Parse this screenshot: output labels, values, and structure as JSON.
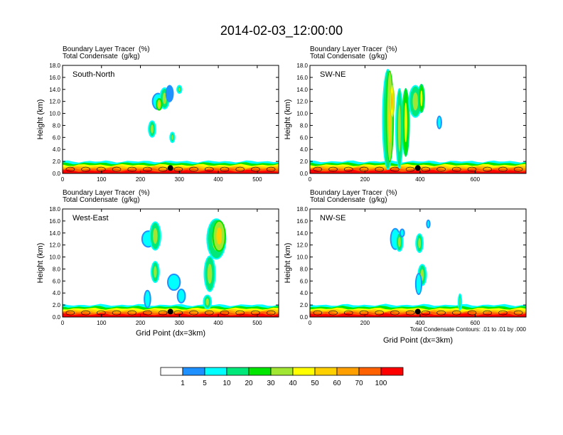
{
  "title": "2014-02-03_12:00:00",
  "chart_data": [
    {
      "type": "heatmap",
      "subtitle_left": "Boundary Layer Tracer",
      "subtitle_units": "(%)",
      "subtitle2_left": "Total Condensate",
      "subtitle2_units": "(g/kg)",
      "panel_label": "South-North",
      "xlabel": "",
      "ylabel": "Height (km)",
      "xlim": [
        0,
        555
      ],
      "ylim": [
        0,
        18
      ],
      "xticks": [
        "0",
        "100",
        "200",
        "300",
        "400",
        "500"
      ],
      "xtick_values": [
        0,
        100,
        200,
        300,
        400,
        500
      ],
      "yticks": [
        "0.0",
        "2.0",
        "4.0",
        "6.0",
        "8.0",
        "10.0",
        "12.0",
        "14.0",
        "16.0",
        "18.0"
      ],
      "marker_x": 277,
      "footnote": "",
      "blobs": [
        {
          "x": 245,
          "y": 12.0,
          "rx": 12,
          "ry": 1.2,
          "level": 2
        },
        {
          "x": 262,
          "y": 12.5,
          "rx": 10,
          "ry": 1.6,
          "level": 3
        },
        {
          "x": 275,
          "y": 13.3,
          "rx": 7,
          "ry": 1.2,
          "level": 1
        },
        {
          "x": 300,
          "y": 14.0,
          "rx": 4,
          "ry": 0.5,
          "level": 3
        },
        {
          "x": 230,
          "y": 7.4,
          "rx": 7,
          "ry": 1.2,
          "level": 3
        },
        {
          "x": 282,
          "y": 6.0,
          "rx": 4,
          "ry": 0.7,
          "level": 3
        },
        {
          "x": 248,
          "y": 11.5,
          "rx": 5,
          "ry": 0.8,
          "level": 5
        }
      ]
    },
    {
      "type": "heatmap",
      "subtitle_left": "Boundary Layer Tracer",
      "subtitle_units": "(%)",
      "subtitle2_left": "Total Condensate",
      "subtitle2_units": "(g/kg)",
      "panel_label": "SW-NE",
      "xlabel": "",
      "ylabel": "Height (km)",
      "xlim": [
        0,
        785
      ],
      "ylim": [
        0,
        18
      ],
      "xticks": [
        "0",
        "200",
        "400",
        "600"
      ],
      "xtick_values": [
        0,
        200,
        400,
        600
      ],
      "yticks": [
        "0.0",
        "2.0",
        "4.0",
        "6.0",
        "8.0",
        "10.0",
        "12.0",
        "14.0",
        "16.0",
        "18.0"
      ],
      "marker_x": 392,
      "footnote": "",
      "blobs": [
        {
          "x": 283,
          "y": 9.0,
          "rx": 16,
          "ry": 8.2,
          "level": 3
        },
        {
          "x": 290,
          "y": 9.5,
          "rx": 10,
          "ry": 7.4,
          "level": 5
        },
        {
          "x": 325,
          "y": 7.5,
          "rx": 10,
          "ry": 6.5,
          "level": 3
        },
        {
          "x": 348,
          "y": 8.5,
          "rx": 10,
          "ry": 5.5,
          "level": 4
        },
        {
          "x": 383,
          "y": 12.0,
          "rx": 20,
          "ry": 2.5,
          "level": 3
        },
        {
          "x": 405,
          "y": 12.5,
          "rx": 8,
          "ry": 2.2,
          "level": 4
        },
        {
          "x": 470,
          "y": 8.5,
          "rx": 5,
          "ry": 0.9,
          "level": 2
        },
        {
          "x": 298,
          "y": 12.0,
          "rx": 5,
          "ry": 2.5,
          "level": 6
        }
      ]
    },
    {
      "type": "heatmap",
      "subtitle_left": "Boundary Layer Tracer",
      "subtitle_units": "(%)",
      "subtitle2_left": "Total Condensate",
      "subtitle2_units": "(g/kg)",
      "panel_label": "West-East",
      "xlabel": "Grid Point (dx=3km)",
      "ylabel": "Height (km)",
      "xlim": [
        0,
        555
      ],
      "ylim": [
        0,
        18
      ],
      "xticks": [
        "0",
        "100",
        "200",
        "300",
        "400",
        "500"
      ],
      "xtick_values": [
        0,
        100,
        200,
        300,
        400,
        500
      ],
      "yticks": [
        "0.0",
        "2.0",
        "4.0",
        "6.0",
        "8.0",
        "10.0",
        "12.0",
        "14.0",
        "16.0",
        "18.0"
      ],
      "marker_x": 277,
      "footnote": "",
      "blobs": [
        {
          "x": 220,
          "y": 13.0,
          "rx": 14,
          "ry": 1.2,
          "level": 2
        },
        {
          "x": 238,
          "y": 13.5,
          "rx": 12,
          "ry": 2.2,
          "level": 3
        },
        {
          "x": 238,
          "y": 7.5,
          "rx": 8,
          "ry": 1.6,
          "level": 3
        },
        {
          "x": 218,
          "y": 3.0,
          "rx": 6,
          "ry": 1.3,
          "level": 2
        },
        {
          "x": 286,
          "y": 5.8,
          "rx": 14,
          "ry": 1.2,
          "level": 2
        },
        {
          "x": 305,
          "y": 3.5,
          "rx": 8,
          "ry": 1.0,
          "level": 2
        },
        {
          "x": 378,
          "y": 7.2,
          "rx": 12,
          "ry": 2.8,
          "level": 3
        },
        {
          "x": 395,
          "y": 13.0,
          "rx": 22,
          "ry": 3.2,
          "level": 3
        },
        {
          "x": 402,
          "y": 13.5,
          "rx": 14,
          "ry": 2.4,
          "level": 5
        },
        {
          "x": 372,
          "y": 2.5,
          "rx": 8,
          "ry": 1.0,
          "level": 3
        }
      ]
    },
    {
      "type": "heatmap",
      "subtitle_left": "Boundary Layer Tracer",
      "subtitle_units": "(%)",
      "subtitle2_left": "Total Condensate",
      "subtitle2_units": "(g/kg)",
      "panel_label": "NW-SE",
      "xlabel": "Grid Point (dx=3km)",
      "ylabel": "Height (km)",
      "xlim": [
        0,
        785
      ],
      "ylim": [
        0,
        18
      ],
      "xticks": [
        "0",
        "200",
        "400",
        "600"
      ],
      "xtick_values": [
        0,
        200,
        400,
        600
      ],
      "yticks": [
        "0.0",
        "2.0",
        "4.0",
        "6.0",
        "8.0",
        "10.0",
        "12.0",
        "14.0",
        "16.0",
        "18.0"
      ],
      "marker_x": 392,
      "footnote": "Total Condensate Contours: .01 to .01 by .000",
      "blobs": [
        {
          "x": 310,
          "y": 13.0,
          "rx": 14,
          "ry": 1.6,
          "level": 2
        },
        {
          "x": 325,
          "y": 12.5,
          "rx": 10,
          "ry": 1.4,
          "level": 3
        },
        {
          "x": 398,
          "y": 12.3,
          "rx": 10,
          "ry": 1.4,
          "level": 3
        },
        {
          "x": 408,
          "y": 7.0,
          "rx": 12,
          "ry": 1.6,
          "level": 3
        },
        {
          "x": 395,
          "y": 5.5,
          "rx": 8,
          "ry": 1.6,
          "level": 2
        },
        {
          "x": 335,
          "y": 14.0,
          "rx": 5,
          "ry": 0.5,
          "level": 2
        },
        {
          "x": 430,
          "y": 15.5,
          "rx": 3,
          "ry": 0.5,
          "level": 2
        },
        {
          "x": 545,
          "y": 2.5,
          "rx": 3,
          "ry": 1.2,
          "level": 3
        }
      ]
    }
  ],
  "colorbar": {
    "labels": [
      "1",
      "5",
      "10",
      "20",
      "30",
      "40",
      "50",
      "60",
      "70",
      "100"
    ],
    "colors": [
      "#ffffff",
      "#1e90ff",
      "#00ffff",
      "#00e87a",
      "#00e600",
      "#a0e632",
      "#ffff00",
      "#ffd000",
      "#ffa000",
      "#ff6000",
      "#ff0000"
    ]
  }
}
